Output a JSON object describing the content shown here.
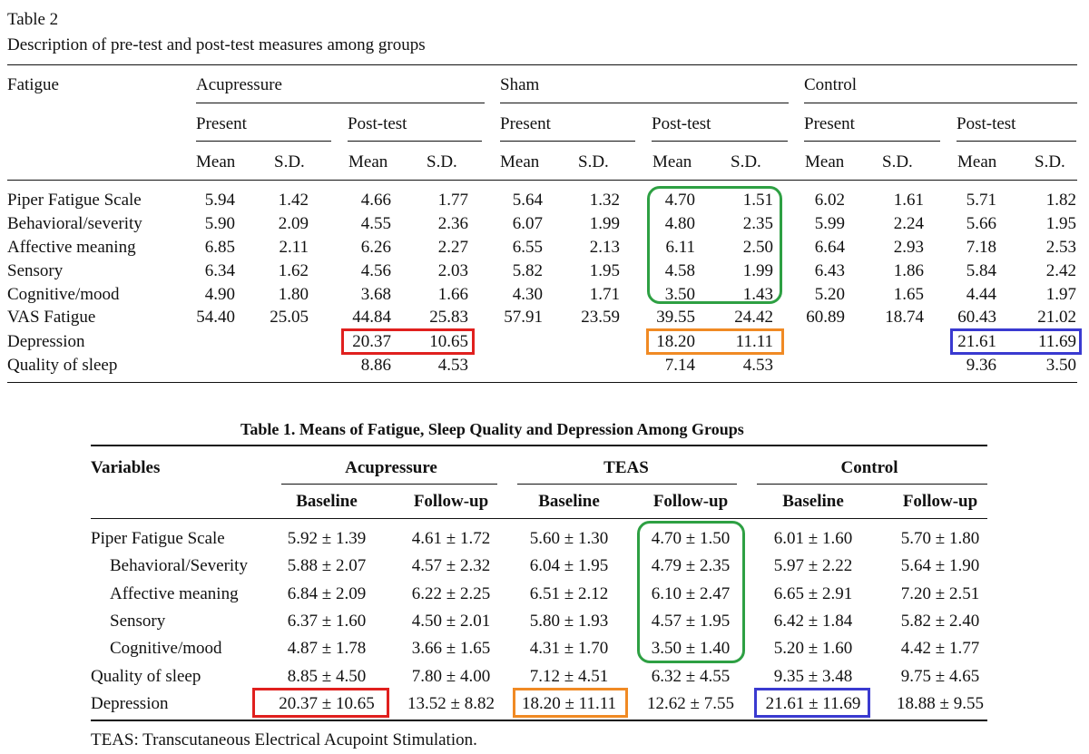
{
  "table2": {
    "label": "Table 2",
    "caption": "Description of pre-test and post-test measures among groups",
    "stub_header": "Fatigue",
    "groups": [
      "Acupressure",
      "Sham",
      "Control"
    ],
    "times": [
      "Present",
      "Post-test"
    ],
    "stats": [
      "Mean",
      "S.D."
    ],
    "rows": [
      {
        "label": "Piper Fatigue Scale",
        "values": [
          "5.94",
          "1.42",
          "4.66",
          "1.77",
          "5.64",
          "1.32",
          "4.70",
          "1.51",
          "6.02",
          "1.61",
          "5.71",
          "1.82"
        ]
      },
      {
        "label": "Behavioral/severity",
        "values": [
          "5.90",
          "2.09",
          "4.55",
          "2.36",
          "6.07",
          "1.99",
          "4.80",
          "2.35",
          "5.99",
          "2.24",
          "5.66",
          "1.95"
        ]
      },
      {
        "label": "Affective meaning",
        "values": [
          "6.85",
          "2.11",
          "6.26",
          "2.27",
          "6.55",
          "2.13",
          "6.11",
          "2.50",
          "6.64",
          "2.93",
          "7.18",
          "2.53"
        ]
      },
      {
        "label": "Sensory",
        "values": [
          "6.34",
          "1.62",
          "4.56",
          "2.03",
          "5.82",
          "1.95",
          "4.58",
          "1.99",
          "6.43",
          "1.86",
          "5.84",
          "2.42"
        ]
      },
      {
        "label": "Cognitive/mood",
        "values": [
          "4.90",
          "1.80",
          "3.68",
          "1.66",
          "4.30",
          "1.71",
          "3.50",
          "1.43",
          "5.20",
          "1.65",
          "4.44",
          "1.97"
        ]
      },
      {
        "label": "VAS Fatigue",
        "values": [
          "54.40",
          "25.05",
          "44.84",
          "25.83",
          "57.91",
          "23.59",
          "39.55",
          "24.42",
          "60.89",
          "18.74",
          "60.43",
          "21.02"
        ]
      },
      {
        "label": "Depression",
        "values": [
          "",
          "",
          "20.37",
          "10.65",
          "",
          "",
          "18.20",
          "11.11",
          "",
          "",
          "21.61",
          "11.69"
        ]
      },
      {
        "label": "Quality of sleep",
        "values": [
          "",
          "",
          "8.86",
          "4.53",
          "",
          "",
          "7.14",
          "4.53",
          "",
          "",
          "9.36",
          "3.50"
        ]
      }
    ]
  },
  "table1": {
    "title": "Table 1.  Means of Fatigue, Sleep Quality and Depression Among Groups",
    "stub_header": "Variables",
    "groups": [
      "Acupressure",
      "TEAS",
      "Control"
    ],
    "times": [
      "Baseline",
      "Follow-up"
    ],
    "rows": [
      {
        "label": "Piper Fatigue Scale",
        "values": [
          "5.92 ± 1.39",
          "4.61 ± 1.72",
          "5.60 ± 1.30",
          "4.70 ± 1.50",
          "6.01 ± 1.60",
          "5.70 ± 1.80"
        ]
      },
      {
        "label": "Behavioral/Severity",
        "values": [
          "5.88 ± 2.07",
          "4.57 ± 2.32",
          "6.04 ± 1.95",
          "4.79 ± 2.35",
          "5.97 ± 2.22",
          "5.64 ± 1.90"
        ]
      },
      {
        "label": "Affective meaning",
        "values": [
          "6.84 ± 2.09",
          "6.22 ± 2.25",
          "6.51 ± 2.12",
          "6.10 ± 2.47",
          "6.65 ± 2.91",
          "7.20 ± 2.51"
        ]
      },
      {
        "label": "Sensory",
        "values": [
          "6.37 ± 1.60",
          "4.50 ± 2.01",
          "5.80 ± 1.93",
          "4.57 ± 1.95",
          "6.42 ± 1.84",
          "5.82 ± 2.40"
        ]
      },
      {
        "label": "Cognitive/mood",
        "values": [
          "4.87 ± 1.78",
          "3.66 ± 1.65",
          "4.31 ± 1.70",
          "3.50 ± 1.40",
          "5.20 ± 1.60",
          "4.42 ± 1.77"
        ]
      },
      {
        "label": "Quality of sleep",
        "values": [
          "8.85 ± 4.50",
          "7.80 ± 4.00",
          "7.12 ± 4.51",
          "6.32 ± 4.55",
          "9.35 ± 3.48",
          "9.75 ± 4.65"
        ]
      },
      {
        "label": "Depression",
        "values": [
          "20.37 ± 10.65",
          "13.52 ± 8.82",
          "18.20 ± 11.11",
          "12.62 ± 7.55",
          "21.61 ± 11.69",
          "18.88 ± 9.55"
        ]
      }
    ],
    "footnote": "TEAS: Transcutaneous Electrical Acupoint Stimulation."
  },
  "highlight_colors": {
    "green": "#2ea043",
    "red": "#e0201e",
    "orange": "#f08a24",
    "blue": "#3a3ad0"
  }
}
